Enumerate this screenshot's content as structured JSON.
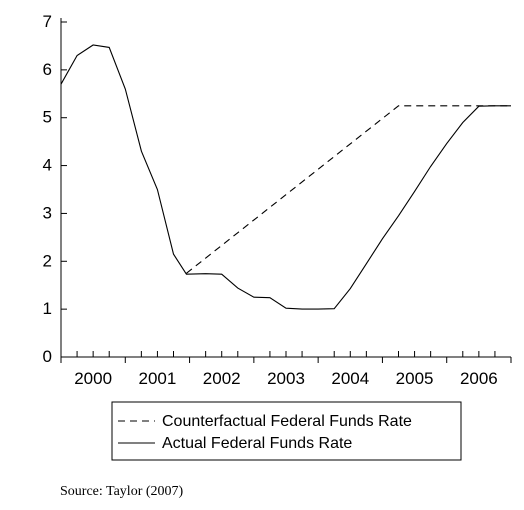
{
  "chart_data": {
    "type": "line",
    "title": "",
    "xlabel": "",
    "ylabel": "",
    "xlim": [
      2000.0,
      2007.0
    ],
    "ylim": [
      0,
      7
    ],
    "y_ticks": [
      0,
      1,
      2,
      3,
      4,
      5,
      6,
      7
    ],
    "x_tick_labels": [
      "2000",
      "2001",
      "2002",
      "2003",
      "2004",
      "2005",
      "2006"
    ],
    "grid": false,
    "legend_placement": "bottom-center",
    "series": [
      {
        "name": "Counterfactual Federal Funds Rate",
        "style": "dashed",
        "color": "#000000",
        "x": [
          2001.95,
          2005.25,
          2007.0
        ],
        "y": [
          1.75,
          5.25,
          5.25
        ]
      },
      {
        "name": "Actual Federal Funds Rate",
        "style": "solid",
        "color": "#000000",
        "x": [
          2000.0,
          2000.25,
          2000.5,
          2000.75,
          2001.0,
          2001.25,
          2001.5,
          2001.75,
          2001.95,
          2002.25,
          2002.5,
          2002.75,
          2003.0,
          2003.25,
          2003.5,
          2003.75,
          2004.0,
          2004.25,
          2004.5,
          2004.75,
          2005.0,
          2005.25,
          2005.5,
          2005.75,
          2006.0,
          2006.25,
          2006.5,
          2006.75,
          2007.0
        ],
        "y": [
          5.7,
          6.3,
          6.52,
          6.47,
          5.6,
          4.3,
          3.5,
          2.15,
          1.73,
          1.74,
          1.73,
          1.44,
          1.25,
          1.24,
          1.02,
          1.0,
          1.0,
          1.01,
          1.43,
          1.95,
          2.47,
          2.95,
          3.46,
          3.98,
          4.46,
          4.9,
          5.24,
          5.25,
          5.25
        ]
      }
    ]
  },
  "source": "Source: Taylor (2007)"
}
